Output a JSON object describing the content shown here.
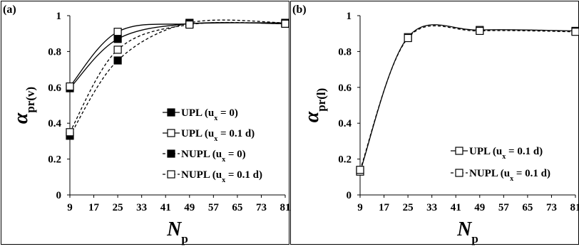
{
  "chart_data": [
    {
      "type": "line",
      "panel_label": "(a)",
      "ylabel": {
        "symbol": "α",
        "subscript": "pr(v)"
      },
      "xlabel": {
        "symbol": "N",
        "subscript": "p"
      },
      "x": [
        9,
        25,
        49,
        81
      ],
      "xlim": [
        9,
        81
      ],
      "ylim": [
        0,
        1
      ],
      "xticks": [
        9,
        17,
        25,
        33,
        41,
        49,
        57,
        65,
        73,
        81
      ],
      "yticks": [
        "0",
        "0.2",
        "0.4",
        "0.6",
        "0.8",
        "1"
      ],
      "legend_position": "lower-right",
      "series": [
        {
          "name": "UPL",
          "cond": "(u",
          "cond_sub": "x",
          "cond_end": " = 0)",
          "values": [
            0.595,
            0.87,
            0.955,
            0.955
          ],
          "marker": "filled",
          "dash": false
        },
        {
          "name": "UPL",
          "cond": "(u",
          "cond_sub": "x",
          "cond_end": " = 0.1 d)",
          "values": [
            0.605,
            0.91,
            0.955,
            0.96
          ],
          "marker": "open",
          "dash": false
        },
        {
          "name": "NUPL",
          "cond": "(u",
          "cond_sub": "x",
          "cond_end": " = 0)",
          "values": [
            0.33,
            0.75,
            0.96,
            0.96
          ],
          "marker": "filled",
          "dash": true
        },
        {
          "name": "NUPL",
          "cond": "(u",
          "cond_sub": "x",
          "cond_end": " = 0.1 d)",
          "values": [
            0.35,
            0.81,
            0.95,
            0.955
          ],
          "marker": "open",
          "dash": true
        }
      ]
    },
    {
      "type": "line",
      "panel_label": "(b)",
      "ylabel": {
        "symbol": "α",
        "subscript": "pr(l)"
      },
      "xlabel": {
        "symbol": "N",
        "subscript": "p"
      },
      "x": [
        9,
        25,
        49,
        81
      ],
      "xlim": [
        9,
        81
      ],
      "ylim": [
        0,
        1
      ],
      "xticks": [
        9,
        17,
        25,
        33,
        41,
        49,
        57,
        65,
        73,
        81
      ],
      "yticks": [
        "0",
        "0.2",
        "0.4",
        "0.6",
        "0.8",
        "1"
      ],
      "legend_position": "lower-right",
      "series": [
        {
          "name": "UPL",
          "cond": "(u",
          "cond_sub": "x",
          "cond_end": " = 0.1 d)",
          "values": [
            0.13,
            0.88,
            0.92,
            0.915
          ],
          "marker": "open",
          "dash": false
        },
        {
          "name": "NUPL",
          "cond": "(u",
          "cond_sub": "x",
          "cond_end": " = 0.1 d)",
          "values": [
            0.14,
            0.875,
            0.915,
            0.91
          ],
          "marker": "open",
          "dash": true
        }
      ]
    }
  ]
}
